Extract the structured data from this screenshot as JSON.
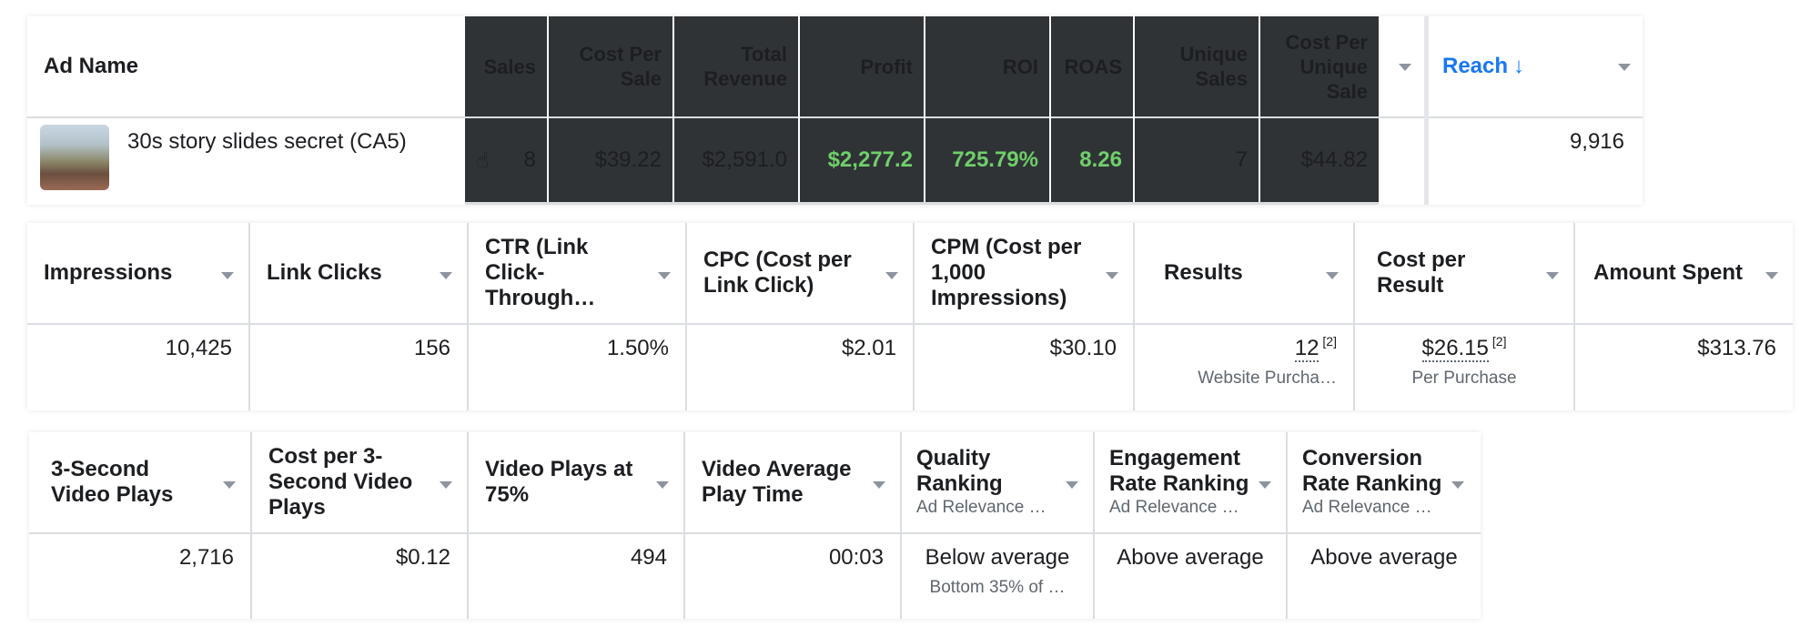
{
  "panel1": {
    "ad_name_header": "Ad Name",
    "ad_name": "30s story slides secret (CA5)",
    "headers": [
      "Sales",
      "Cost Per Sale",
      "Total Revenue",
      "Profit",
      "ROI",
      "ROAS",
      "Unique Sales",
      "Cost Per Unique Sale"
    ],
    "values": {
      "sales": "8",
      "cost_per_sale": "$39.22",
      "total_revenue": "$2,591.0",
      "profit": "$2,277.2",
      "roi": "725.79%",
      "roas": "8.26",
      "unique_sales": "7",
      "cost_per_unique_sale": "$44.82"
    },
    "reach_header": "Reach",
    "reach_value": "9,916"
  },
  "panel2": {
    "headers": [
      "Impressions",
      "Link Clicks",
      "CTR (Link Click-Through…",
      "CPC (Cost per Link Click)",
      "CPM (Cost per 1,000 Impressions)",
      "Results",
      "Cost per Result",
      "Amount Spent"
    ],
    "values": {
      "impressions": "10,425",
      "link_clicks": "156",
      "ctr": "1.50%",
      "cpc": "$2.01",
      "cpm": "$30.10",
      "results": "12",
      "results_note": "[2]",
      "results_sub": "Website Purcha…",
      "cost_per_result": "$26.15",
      "cost_per_result_note": "[2]",
      "cost_per_result_sub": "Per Purchase",
      "amount_spent": "$313.76"
    }
  },
  "panel3": {
    "headers": [
      "3-Second Video Plays",
      "Cost per 3-Second Video Plays",
      "Video Plays at 75%",
      "Video Average Play Time",
      "Quality Ranking",
      "Engagement Rate Ranking",
      "Conversion Rate Ranking"
    ],
    "header_subs": {
      "quality": "Ad Relevance …",
      "engagement": "Ad Relevance …",
      "conversion": "Ad Relevance …"
    },
    "values": {
      "three_sec_plays": "2,716",
      "cost_per_three_sec": "$0.12",
      "plays_75": "494",
      "avg_play_time": "00:03",
      "quality": "Below average",
      "quality_sub": "Bottom 35% of …",
      "engagement": "Above average",
      "conversion": "Above average"
    }
  },
  "colors": {
    "dark": "#303336",
    "green": "#6fcf6a",
    "blue": "#1877f2"
  },
  "icons": {
    "reach_sort": "arrow-down-icon",
    "sales_icon": "thumbs-up-icon"
  }
}
